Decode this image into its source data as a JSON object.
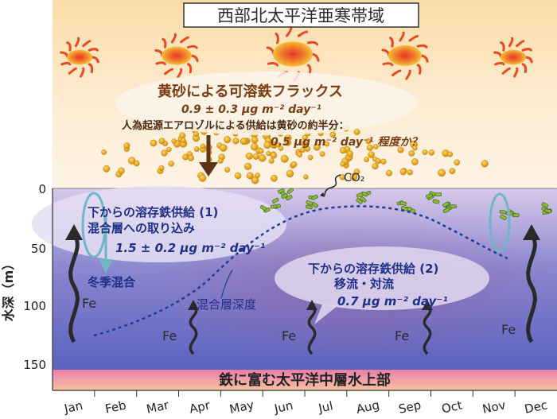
{
  "title": "西部北太平洋亜寒帯域",
  "dust_flux": {
    "label": "黄砂による可溶鉄フラックス",
    "value": "0.9 ± 0.3 μg m⁻² day⁻¹"
  },
  "anthro": {
    "line1": "人為起源エアロゾルによる供給は黄砂の約半分：",
    "line2": "0.5 μg m⁻² day⁻¹ 程度か？"
  },
  "co2_label": "CO₂",
  "supply1": {
    "title": "下からの溶存鉄供給 (1)",
    "subtitle": "混合層への取り込み",
    "value": "1.5 ± 0.2 μg m⁻² day⁻¹"
  },
  "winter_mixing": "冬季混合",
  "mixed_layer_depth": "混合層深度",
  "supply2": {
    "title": "下からの溶存鉄供給 (2)",
    "subtitle": "移流・対流",
    "value": "0.7 μg m⁻² day⁻¹"
  },
  "fe_label": "Fe",
  "bottom_label": "鉄に富む太平洋中層水上部",
  "y_axis": {
    "title": "水深（m）",
    "ticks": [
      "0",
      "50",
      "100",
      "150"
    ]
  },
  "months": [
    "Jan",
    "Feb",
    "Mar",
    "Apr",
    "May",
    "Jun",
    "Jul",
    "Aug",
    "Sep",
    "Oct",
    "Nov",
    "Dec"
  ],
  "colors": {
    "title_text": "#2b2b2b",
    "flux_text": "#7a3e12",
    "supply_text": "#1f2f8a",
    "arrow_dark": "#2a2a2a",
    "mld_line": "#1f3f9a",
    "dust": "#e6a316"
  }
}
